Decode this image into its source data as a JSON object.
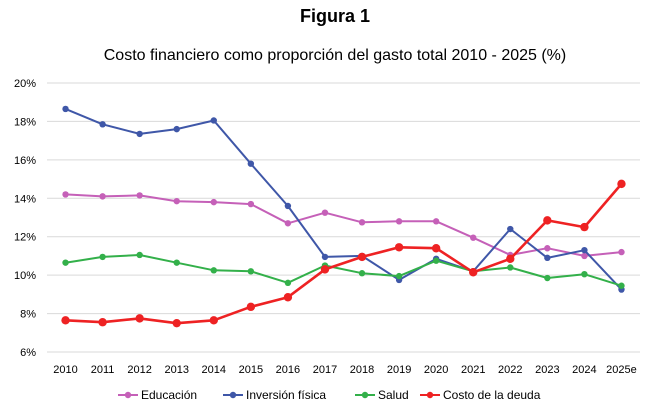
{
  "figure_label": "Figura 1",
  "chart_data": {
    "type": "line",
    "title": "Costo financiero como proporción del gasto total 2010 - 2025 (%)",
    "xlabel": "",
    "ylabel": "",
    "categories": [
      "2010",
      "2011",
      "2012",
      "2013",
      "2014",
      "2015",
      "2016",
      "2017",
      "2018",
      "2019",
      "2020",
      "2021",
      "2022",
      "2023",
      "2024",
      "2025e"
    ],
    "y_ticks": [
      "6%",
      "8%",
      "10%",
      "12%",
      "14%",
      "16%",
      "18%",
      "20%"
    ],
    "ylim": [
      6,
      20
    ],
    "grid": true,
    "legend_position": "bottom",
    "series": [
      {
        "name": "Educación",
        "color": "#c560b8",
        "values": [
          14.2,
          14.1,
          14.15,
          13.85,
          13.8,
          13.7,
          12.7,
          13.25,
          12.75,
          12.8,
          12.8,
          11.95,
          11.05,
          11.4,
          11.0,
          11.2
        ]
      },
      {
        "name": "Inversión física",
        "color": "#3f57a8",
        "values": [
          18.65,
          17.85,
          17.35,
          17.6,
          18.05,
          15.8,
          13.6,
          10.95,
          11.0,
          9.75,
          10.85,
          10.2,
          12.4,
          10.9,
          11.3,
          9.25
        ]
      },
      {
        "name": "Salud",
        "color": "#33b04a",
        "values": [
          10.65,
          10.95,
          11.05,
          10.65,
          10.25,
          10.2,
          9.6,
          10.5,
          10.1,
          9.95,
          10.75,
          10.2,
          10.4,
          9.85,
          10.05,
          9.45
        ]
      },
      {
        "name": "Costo de la deuda",
        "color": "#ee2223",
        "values": [
          7.65,
          7.55,
          7.75,
          7.5,
          7.65,
          8.35,
          8.85,
          10.3,
          10.95,
          11.45,
          11.4,
          10.15,
          10.85,
          12.85,
          12.5,
          14.75
        ]
      }
    ]
  }
}
